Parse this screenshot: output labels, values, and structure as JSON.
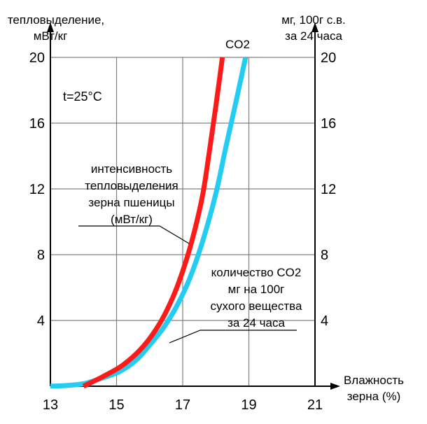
{
  "chart_data": {
    "type": "line",
    "left_axis_label": [
      "тепловыделение,",
      "мВт/кг"
    ],
    "right_axis_label": [
      "мг, 100г с.в.",
      "за 24 часа"
    ],
    "x_axis_label": [
      "Влажность",
      "зерна (%)"
    ],
    "x_ticks": [
      "13",
      "15",
      "17",
      "19",
      "21"
    ],
    "y_ticks_left": [
      "20",
      "16",
      "12",
      "8",
      "4"
    ],
    "y_ticks_right": [
      "20",
      "16",
      "12",
      "8",
      "4"
    ],
    "xlim": [
      13,
      21
    ],
    "ylim": [
      0,
      20
    ],
    "grid": true,
    "temperature_note": "t=25°C",
    "series": [
      {
        "name": "CO2",
        "color": "#ff1a1a",
        "x": [
          14.0,
          14.6,
          15.2,
          15.8,
          16.3,
          16.7,
          17.0,
          17.3,
          17.6,
          17.8,
          18.0,
          18.2
        ],
        "y": [
          0.0,
          0.6,
          1.3,
          2.4,
          3.8,
          5.4,
          7.0,
          9.0,
          11.6,
          14.2,
          17.0,
          20.0
        ]
      },
      {
        "name": "количество CO2",
        "color": "#22ccf2",
        "x": [
          13.0,
          13.5,
          14.0,
          14.5,
          15.1,
          15.6,
          16.0,
          16.4,
          16.8,
          17.2,
          17.6,
          18.0,
          18.3,
          18.6,
          18.9
        ],
        "y": [
          0.0,
          0.05,
          0.15,
          0.45,
          0.9,
          1.6,
          2.5,
          3.5,
          4.8,
          6.5,
          8.8,
          11.7,
          14.5,
          17.2,
          20.0
        ]
      }
    ],
    "annotations": {
      "red_series_label": "CO2",
      "heat_label": [
        "интенсивность",
        "тепловыделения",
        "зерна пшеницы",
        "(мВт/кг)"
      ],
      "co2_label": [
        "количество CO2",
        "мг на 100г",
        "сухого вещества",
        "за 24 часа"
      ]
    }
  }
}
